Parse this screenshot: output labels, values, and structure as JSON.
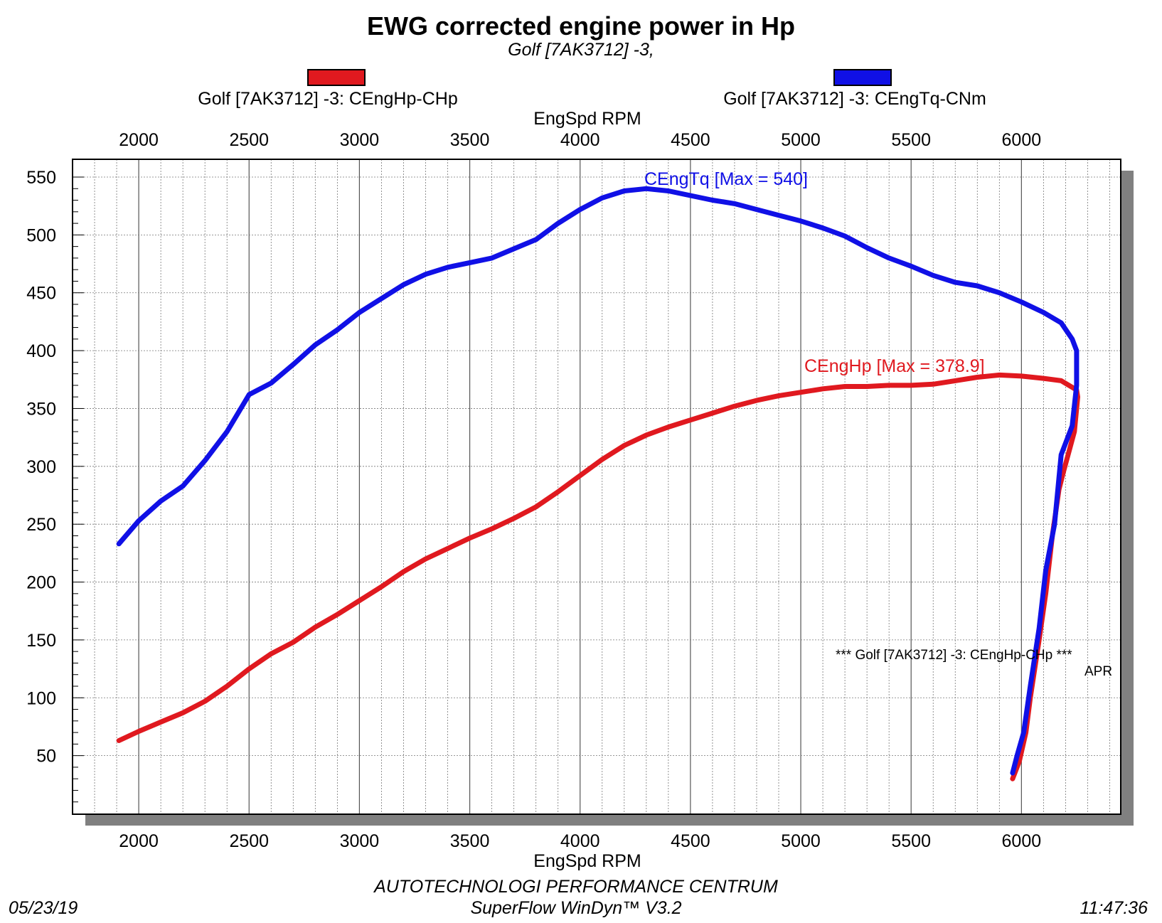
{
  "chart_data": {
    "type": "line",
    "title": "EWG corrected engine power in Hp",
    "subtitle": "Golf [7AK3712] -3,",
    "xlabel": "EngSpd RPM",
    "xlim": [
      1700,
      6450
    ],
    "ylim": [
      0,
      550
    ],
    "x_ticks": [
      "2000",
      "2500",
      "3000",
      "3500",
      "4000",
      "4500",
      "5000",
      "5500",
      "6000"
    ],
    "y_ticks": [
      "50",
      "100",
      "150",
      "200",
      "250",
      "300",
      "350",
      "400",
      "450",
      "500",
      "550"
    ],
    "grid": true,
    "series": [
      {
        "name": "Golf [7AK3712] -3: CEngHp-CHp",
        "color": "#e0191f",
        "annotation": "CEngHp [Max = 378.9]",
        "points": [
          [
            1910,
            63
          ],
          [
            2000,
            71
          ],
          [
            2100,
            79
          ],
          [
            2200,
            87
          ],
          [
            2300,
            97
          ],
          [
            2400,
            110
          ],
          [
            2500,
            125
          ],
          [
            2600,
            138
          ],
          [
            2700,
            148
          ],
          [
            2800,
            161
          ],
          [
            2900,
            172
          ],
          [
            3000,
            184
          ],
          [
            3100,
            196
          ],
          [
            3200,
            209
          ],
          [
            3300,
            220
          ],
          [
            3400,
            229
          ],
          [
            3500,
            238
          ],
          [
            3600,
            246
          ],
          [
            3700,
            255
          ],
          [
            3800,
            265
          ],
          [
            3900,
            278
          ],
          [
            4000,
            292
          ],
          [
            4100,
            306
          ],
          [
            4200,
            318
          ],
          [
            4300,
            327
          ],
          [
            4400,
            334
          ],
          [
            4500,
            340
          ],
          [
            4600,
            346
          ],
          [
            4700,
            352
          ],
          [
            4800,
            357
          ],
          [
            4900,
            361
          ],
          [
            5000,
            364
          ],
          [
            5100,
            367
          ],
          [
            5200,
            369
          ],
          [
            5300,
            369
          ],
          [
            5400,
            370
          ],
          [
            5500,
            370
          ],
          [
            5600,
            371
          ],
          [
            5700,
            374
          ],
          [
            5800,
            377
          ],
          [
            5900,
            378.9
          ],
          [
            6000,
            378
          ],
          [
            6100,
            376
          ],
          [
            6180,
            374
          ],
          [
            6250,
            366
          ],
          [
            6255,
            360
          ],
          [
            6240,
            330
          ],
          [
            6190,
            295
          ],
          [
            6170,
            280
          ],
          [
            6140,
            240
          ],
          [
            6110,
            190
          ],
          [
            6080,
            150
          ],
          [
            6040,
            100
          ],
          [
            6020,
            70
          ],
          [
            5990,
            45
          ],
          [
            5960,
            30
          ]
        ]
      },
      {
        "name": "Golf [7AK3712] -3: CEngTq-CNm",
        "color": "#1010e6",
        "annotation": "CEngTq [Max = 540]",
        "points": [
          [
            1910,
            233
          ],
          [
            2000,
            253
          ],
          [
            2100,
            270
          ],
          [
            2200,
            283
          ],
          [
            2300,
            305
          ],
          [
            2400,
            330
          ],
          [
            2500,
            362
          ],
          [
            2600,
            372
          ],
          [
            2700,
            388
          ],
          [
            2800,
            405
          ],
          [
            2900,
            418
          ],
          [
            3000,
            433
          ],
          [
            3100,
            445
          ],
          [
            3200,
            457
          ],
          [
            3300,
            466
          ],
          [
            3400,
            472
          ],
          [
            3500,
            476
          ],
          [
            3600,
            480
          ],
          [
            3700,
            488
          ],
          [
            3800,
            496
          ],
          [
            3900,
            510
          ],
          [
            4000,
            522
          ],
          [
            4100,
            532
          ],
          [
            4200,
            538
          ],
          [
            4300,
            540
          ],
          [
            4400,
            538
          ],
          [
            4500,
            534
          ],
          [
            4600,
            530
          ],
          [
            4700,
            527
          ],
          [
            4800,
            522
          ],
          [
            4900,
            517
          ],
          [
            5000,
            512
          ],
          [
            5100,
            506
          ],
          [
            5200,
            499
          ],
          [
            5300,
            489
          ],
          [
            5400,
            480
          ],
          [
            5500,
            473
          ],
          [
            5600,
            465
          ],
          [
            5700,
            459
          ],
          [
            5800,
            456
          ],
          [
            5900,
            450
          ],
          [
            6000,
            442
          ],
          [
            6100,
            433
          ],
          [
            6180,
            424
          ],
          [
            6230,
            410
          ],
          [
            6250,
            400
          ],
          [
            6250,
            370
          ],
          [
            6230,
            335
          ],
          [
            6180,
            310
          ],
          [
            6150,
            250
          ],
          [
            6110,
            210
          ],
          [
            6080,
            160
          ],
          [
            6040,
            110
          ],
          [
            6010,
            70
          ],
          [
            5980,
            50
          ],
          [
            5960,
            35
          ]
        ]
      }
    ]
  },
  "note": {
    "line1": "*** Golf [7AK3712] -3: CEngHp-CHp     ***",
    "line2": "APR"
  },
  "footer": {
    "company": "AUTOTECHNOLOGI PERFORMANCE CENTRUM",
    "software": "SuperFlow WinDyn™  V3.2",
    "date": "05/23/19",
    "time": "11:47:36"
  }
}
